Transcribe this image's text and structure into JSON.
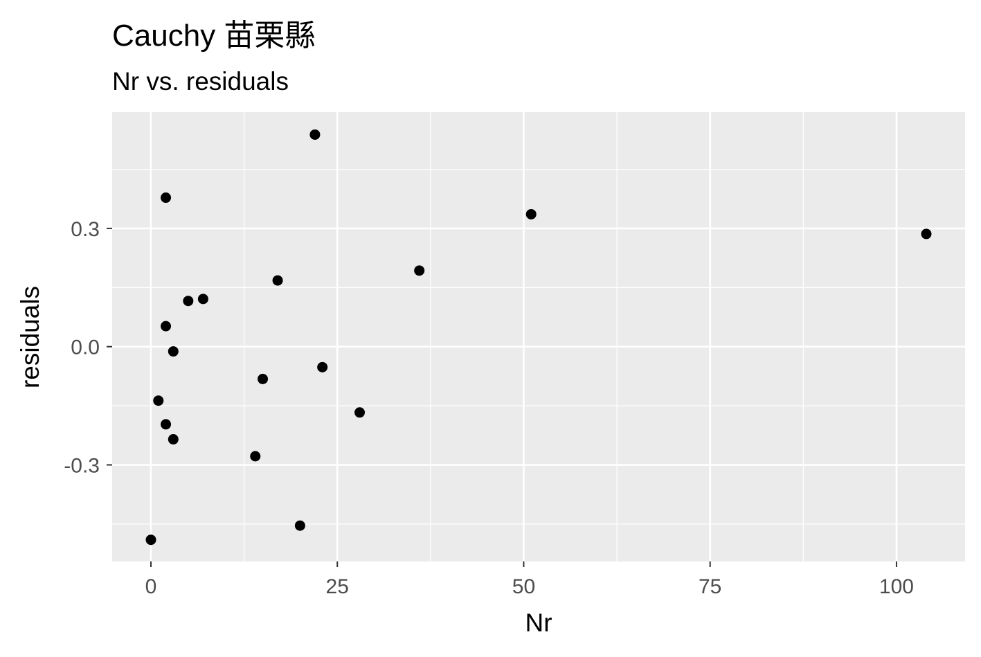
{
  "chart_data": {
    "type": "scatter",
    "title": "Cauchy 苗栗縣",
    "subtitle": "Nr vs. residuals",
    "xlabel": "Nr",
    "ylabel": "residuals",
    "xlim": [
      -5.2,
      109.2
    ],
    "ylim": [
      -0.545,
      0.595
    ],
    "x_ticks": [
      0,
      25,
      50,
      75,
      100
    ],
    "x_tick_labels": [
      "0",
      "25",
      "50",
      "75",
      "100"
    ],
    "x_minor_ticks": [
      12.5,
      37.5,
      62.5,
      87.5
    ],
    "y_ticks": [
      -0.3,
      0.0,
      0.3
    ],
    "y_tick_labels": [
      "-0.3",
      "0.0",
      "0.3"
    ],
    "y_minor_ticks": [
      -0.45,
      -0.15,
      0.15,
      0.45
    ],
    "grid": true,
    "legend": "none",
    "point_color": "#000000",
    "panel_background": "#ebebeb",
    "grid_color": "#ffffff",
    "points": [
      {
        "x": 0,
        "y": -0.49
      },
      {
        "x": 1,
        "y": -0.137
      },
      {
        "x": 2,
        "y": 0.378
      },
      {
        "x": 2,
        "y": 0.052
      },
      {
        "x": 2,
        "y": -0.197
      },
      {
        "x": 3,
        "y": -0.012
      },
      {
        "x": 3,
        "y": -0.235
      },
      {
        "x": 5,
        "y": 0.116
      },
      {
        "x": 7,
        "y": 0.121
      },
      {
        "x": 14,
        "y": -0.278
      },
      {
        "x": 15,
        "y": -0.082
      },
      {
        "x": 17,
        "y": 0.168
      },
      {
        "x": 20,
        "y": -0.454
      },
      {
        "x": 22,
        "y": 0.538
      },
      {
        "x": 23,
        "y": -0.052
      },
      {
        "x": 28,
        "y": -0.167
      },
      {
        "x": 36,
        "y": 0.193
      },
      {
        "x": 51,
        "y": 0.336
      },
      {
        "x": 104,
        "y": 0.286
      }
    ]
  }
}
